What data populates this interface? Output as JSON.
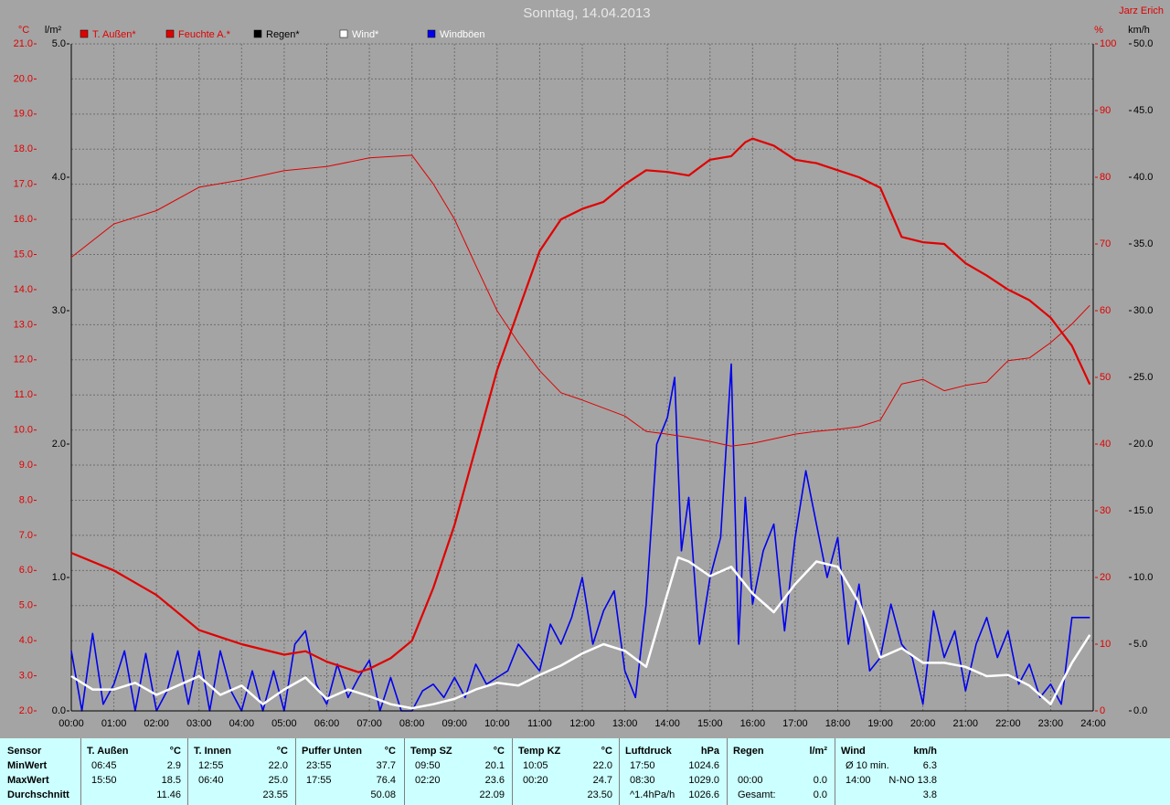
{
  "chart_data": {
    "type": "line",
    "title": "Sonntag, 14.04.2013",
    "author": "Jarz Erich",
    "y_label": "°C",
    "y3_label": "l/m²",
    "y2_label": "%",
    "y4_label": "km/h",
    "xlim": [
      0,
      24
    ],
    "xticks": [
      {
        "value": 0,
        "label": "00:00"
      },
      {
        "value": 1,
        "label": "01:00"
      },
      {
        "value": 2,
        "label": "02:00"
      },
      {
        "value": 3,
        "label": "03:00"
      },
      {
        "value": 4,
        "label": "04:00"
      },
      {
        "value": 5,
        "label": "05:00"
      },
      {
        "value": 6,
        "label": "06:00"
      },
      {
        "value": 7,
        "label": "07:00"
      },
      {
        "value": 8,
        "label": "08:00"
      },
      {
        "value": 9,
        "label": "09:00"
      },
      {
        "value": 10,
        "label": "10:00"
      },
      {
        "value": 11,
        "label": "11:00"
      },
      {
        "value": 12,
        "label": "12:00"
      },
      {
        "value": 13,
        "label": "13:00"
      },
      {
        "value": 14,
        "label": "14:00"
      },
      {
        "value": 15,
        "label": "15:00"
      },
      {
        "value": 16,
        "label": "16:00"
      },
      {
        "value": 17,
        "label": "17:00"
      },
      {
        "value": 18,
        "label": "18:00"
      },
      {
        "value": 19,
        "label": "19:00"
      },
      {
        "value": 20,
        "label": "20:00"
      },
      {
        "value": 21,
        "label": "21:00"
      },
      {
        "value": 22,
        "label": "22:00"
      },
      {
        "value": 23,
        "label": "23:00"
      },
      {
        "value": 24,
        "label": "24:00"
      }
    ],
    "ylim": [
      2,
      21
    ],
    "yticks": [
      {
        "value": 2,
        "label": "2.0"
      },
      {
        "value": 3,
        "label": "3.0"
      },
      {
        "value": 4,
        "label": "4.0"
      },
      {
        "value": 5,
        "label": "5.0"
      },
      {
        "value": 6,
        "label": "6.0"
      },
      {
        "value": 7,
        "label": "7.0"
      },
      {
        "value": 8,
        "label": "8.0"
      },
      {
        "value": 9,
        "label": "9.0"
      },
      {
        "value": 10,
        "label": "10.0"
      },
      {
        "value": 11,
        "label": "11.0"
      },
      {
        "value": 12,
        "label": "12.0"
      },
      {
        "value": 13,
        "label": "13.0"
      },
      {
        "value": 14,
        "label": "14.0"
      },
      {
        "value": 15,
        "label": "15.0"
      },
      {
        "value": 16,
        "label": "16.0"
      },
      {
        "value": 17,
        "label": "17.0"
      },
      {
        "value": 18,
        "label": "18.0"
      },
      {
        "value": 19,
        "label": "19.0"
      },
      {
        "value": 20,
        "label": "20.0"
      },
      {
        "value": 21,
        "label": "21.0"
      }
    ],
    "y3lim": [
      0,
      5
    ],
    "y3ticks": [
      {
        "value": 0,
        "label": "0.0"
      },
      {
        "value": 1,
        "label": "1.0"
      },
      {
        "value": 2,
        "label": "2.0"
      },
      {
        "value": 3,
        "label": "3.0"
      },
      {
        "value": 4,
        "label": "4.0"
      },
      {
        "value": 5,
        "label": "5.0"
      }
    ],
    "y2lim": [
      0,
      100
    ],
    "y2ticks": [
      0,
      10,
      20,
      30,
      40,
      50,
      60,
      70,
      80,
      90,
      100
    ],
    "y4lim": [
      0,
      50
    ],
    "y4ticks": [
      {
        "value": 0,
        "label": "0.0"
      },
      {
        "value": 5,
        "label": "5.0"
      },
      {
        "value": 10,
        "label": "10.0"
      },
      {
        "value": 15,
        "label": "15.0"
      },
      {
        "value": 20,
        "label": "20.0"
      },
      {
        "value": 25,
        "label": "25.0"
      },
      {
        "value": 30,
        "label": "30.0"
      },
      {
        "value": 35,
        "label": "35.0"
      },
      {
        "value": 40,
        "label": "40.0"
      },
      {
        "value": 45,
        "label": "45.0"
      },
      {
        "value": 50,
        "label": "50.0"
      }
    ],
    "grid": true,
    "series": [
      {
        "name": "T. Außen*",
        "color": "#e00000",
        "axis": "y",
        "line_width": 2.2,
        "x": [
          0,
          1,
          2,
          3,
          4,
          5,
          5.5,
          6,
          6.75,
          7,
          7.5,
          8,
          8.5,
          9,
          9.5,
          10,
          10.5,
          11,
          11.5,
          12,
          12.5,
          13,
          13.5,
          14,
          14.5,
          15,
          15.5,
          15.83,
          16,
          16.5,
          17,
          17.5,
          18,
          18.5,
          19,
          19.5,
          20,
          20.5,
          21,
          21.5,
          22,
          22.5,
          23,
          23.5,
          23.92
        ],
        "values": [
          6.5,
          6.0,
          5.3,
          4.3,
          3.9,
          3.6,
          3.7,
          3.4,
          3.1,
          3.2,
          3.5,
          4.0,
          5.5,
          7.3,
          9.5,
          11.7,
          13.4,
          15.1,
          16.0,
          16.3,
          16.5,
          17.0,
          17.4,
          17.35,
          17.25,
          17.7,
          17.8,
          18.2,
          18.3,
          18.1,
          17.7,
          17.6,
          17.4,
          17.2,
          16.9,
          15.5,
          15.35,
          15.3,
          14.75,
          14.4,
          14.0,
          13.7,
          13.2,
          12.4,
          11.3
        ]
      },
      {
        "name": "Feuchte A.*",
        "color": "#e00000",
        "axis": "y2",
        "line_width": 1,
        "x": [
          0,
          1,
          2,
          3,
          4,
          5,
          6,
          7,
          8,
          8.5,
          9,
          9.5,
          10,
          10.5,
          11,
          11.5,
          12,
          13,
          13.5,
          14,
          14.5,
          15,
          15.5,
          16,
          16.5,
          17,
          17.5,
          18,
          18.5,
          19,
          19.5,
          20,
          20.5,
          21,
          21.5,
          22,
          22.5,
          23,
          23.5,
          23.92
        ],
        "values": [
          68,
          73,
          75,
          78.5,
          79.6,
          81,
          81.6,
          82.9,
          83.3,
          79,
          73.7,
          66.8,
          60,
          55.2,
          51,
          47.7,
          46.6,
          44.2,
          41.9,
          41.5,
          41,
          40.4,
          39.7,
          40.1,
          40.8,
          41.5,
          41.9,
          42.2,
          42.6,
          43.6,
          49,
          49.7,
          48,
          48.8,
          49.3,
          52.5,
          52.9,
          55.2,
          58,
          60.8
        ]
      },
      {
        "name": "Regen*",
        "color": "#000000",
        "axis": "y3",
        "line_width": 1,
        "x": [
          0,
          24
        ],
        "values": [
          0,
          0
        ]
      },
      {
        "name": "Wind*",
        "color": "#ffffff",
        "axis": "y4",
        "line_width": 2.5,
        "x": [
          0,
          0.5,
          1,
          1.5,
          2,
          2.5,
          3,
          3.5,
          4,
          4.5,
          5,
          5.5,
          6,
          6.5,
          7,
          7.5,
          8,
          8.5,
          9,
          9.5,
          10,
          10.5,
          11,
          11.5,
          12,
          12.5,
          13,
          13.5,
          14,
          14.25,
          14.5,
          15,
          15.5,
          16,
          16.5,
          17,
          17.5,
          18,
          18.5,
          19,
          19.5,
          20,
          20.5,
          21,
          21.5,
          22,
          22.5,
          23,
          23.5,
          23.92
        ],
        "values": [
          2.6,
          1.6,
          1.6,
          2.1,
          1.2,
          1.9,
          2.6,
          1.2,
          1.9,
          0.5,
          1.6,
          2.5,
          0.9,
          1.6,
          1.1,
          0.5,
          0.2,
          0.5,
          0.9,
          1.6,
          2.1,
          1.9,
          2.7,
          3.4,
          4.3,
          5.0,
          4.5,
          3.3,
          8.8,
          11.5,
          11.2,
          10.1,
          10.8,
          8.8,
          7.4,
          9.5,
          11.2,
          10.8,
          8.1,
          4.0,
          4.7,
          3.6,
          3.6,
          3.3,
          2.6,
          2.7,
          1.9,
          0.5,
          3.6,
          5.7
        ]
      },
      {
        "name": "Windböen",
        "color": "#0000ee",
        "axis": "y4",
        "line_width": 1.6,
        "x": [
          0,
          0.25,
          0.5,
          0.75,
          1,
          1.25,
          1.5,
          1.75,
          2,
          2.25,
          2.5,
          2.75,
          3,
          3.25,
          3.5,
          3.75,
          4,
          4.25,
          4.5,
          4.75,
          5,
          5.25,
          5.5,
          5.75,
          6,
          6.25,
          6.5,
          6.75,
          7,
          7.25,
          7.5,
          7.75,
          8,
          8.25,
          8.5,
          8.75,
          9,
          9.25,
          9.5,
          9.75,
          10,
          10.25,
          10.5,
          10.75,
          11,
          11.25,
          11.5,
          11.75,
          12,
          12.25,
          12.5,
          12.75,
          13,
          13.25,
          13.5,
          13.75,
          14,
          14.17,
          14.33,
          14.5,
          14.75,
          15,
          15.25,
          15.5,
          15.67,
          15.83,
          16,
          16.25,
          16.5,
          16.75,
          17,
          17.25,
          17.5,
          17.75,
          18,
          18.25,
          18.5,
          18.75,
          19,
          19.25,
          19.5,
          19.75,
          20,
          20.25,
          20.5,
          20.75,
          21,
          21.25,
          21.5,
          21.75,
          22,
          22.25,
          22.5,
          22.75,
          23,
          23.25,
          23.5,
          23.75,
          23.92
        ],
        "values": [
          4.5,
          0,
          5.8,
          0.5,
          2,
          4.5,
          0,
          4.3,
          0,
          1.5,
          4.5,
          0.5,
          4.5,
          0,
          4.5,
          1.5,
          0,
          3,
          0,
          3,
          0,
          5,
          6,
          2,
          0.5,
          3.5,
          1,
          2.5,
          3.8,
          0,
          2.5,
          0,
          0,
          1.5,
          2,
          1,
          2.5,
          1,
          3.5,
          2,
          2.5,
          3,
          5,
          4,
          3,
          6.5,
          5,
          7,
          10,
          5,
          7.5,
          9,
          3,
          1,
          8,
          20,
          22,
          25,
          12,
          16,
          5,
          10,
          13,
          26,
          5,
          16,
          8,
          12,
          14,
          6,
          13,
          18,
          14,
          10,
          13,
          5,
          9.5,
          3,
          4,
          8,
          5,
          4,
          0.5,
          7.5,
          4,
          6,
          1.5,
          5,
          7,
          4,
          6,
          2,
          3.5,
          1,
          2,
          0.5,
          7,
          7,
          7
        ]
      }
    ]
  },
  "table": {
    "header": "Sensor",
    "row_labels": [
      "MinWert",
      "MaxWert",
      "Durchschnitt"
    ],
    "columns": [
      {
        "name": "T. Außen",
        "unit": "°C",
        "cells": [
          [
            "06:45",
            "2.9"
          ],
          [
            "15:50",
            "18.5"
          ],
          [
            null,
            "11.46"
          ]
        ]
      },
      {
        "name": "T. Innen",
        "unit": "°C",
        "cells": [
          [
            "12:55",
            "22.0"
          ],
          [
            "06:40",
            "25.0"
          ],
          [
            null,
            "23.55"
          ]
        ]
      },
      {
        "name": "Puffer Unten",
        "unit": "°C",
        "cells": [
          [
            "23:55",
            "37.7"
          ],
          [
            "17:55",
            "76.4"
          ],
          [
            null,
            "50.08"
          ]
        ]
      },
      {
        "name": "Temp SZ",
        "unit": "°C",
        "cells": [
          [
            "09:50",
            "20.1"
          ],
          [
            "02:20",
            "23.6"
          ],
          [
            null,
            "22.09"
          ]
        ]
      },
      {
        "name": "Temp KZ",
        "unit": "°C",
        "cells": [
          [
            "10:05",
            "22.0"
          ],
          [
            "00:20",
            "24.7"
          ],
          [
            null,
            "23.50"
          ]
        ]
      },
      {
        "name": "Luftdruck",
        "unit": "hPa",
        "cells": [
          [
            "17:50",
            "1024.6"
          ],
          [
            "08:30",
            "1029.0"
          ],
          [
            "^1.4hPa/h",
            "1026.6"
          ]
        ]
      },
      {
        "name": "Regen",
        "unit": "l/m²",
        "cells": [
          [
            null,
            null
          ],
          [
            "00:00",
            "0.0"
          ],
          [
            "Gesamt:",
            "0.0"
          ]
        ]
      },
      {
        "name": "Wind",
        "unit": "km/h",
        "cells": [
          [
            "Ø 10 min.",
            "6.3"
          ],
          [
            "14:00",
            "N-NO 13.8"
          ],
          [
            null,
            "3.8"
          ]
        ]
      }
    ]
  }
}
